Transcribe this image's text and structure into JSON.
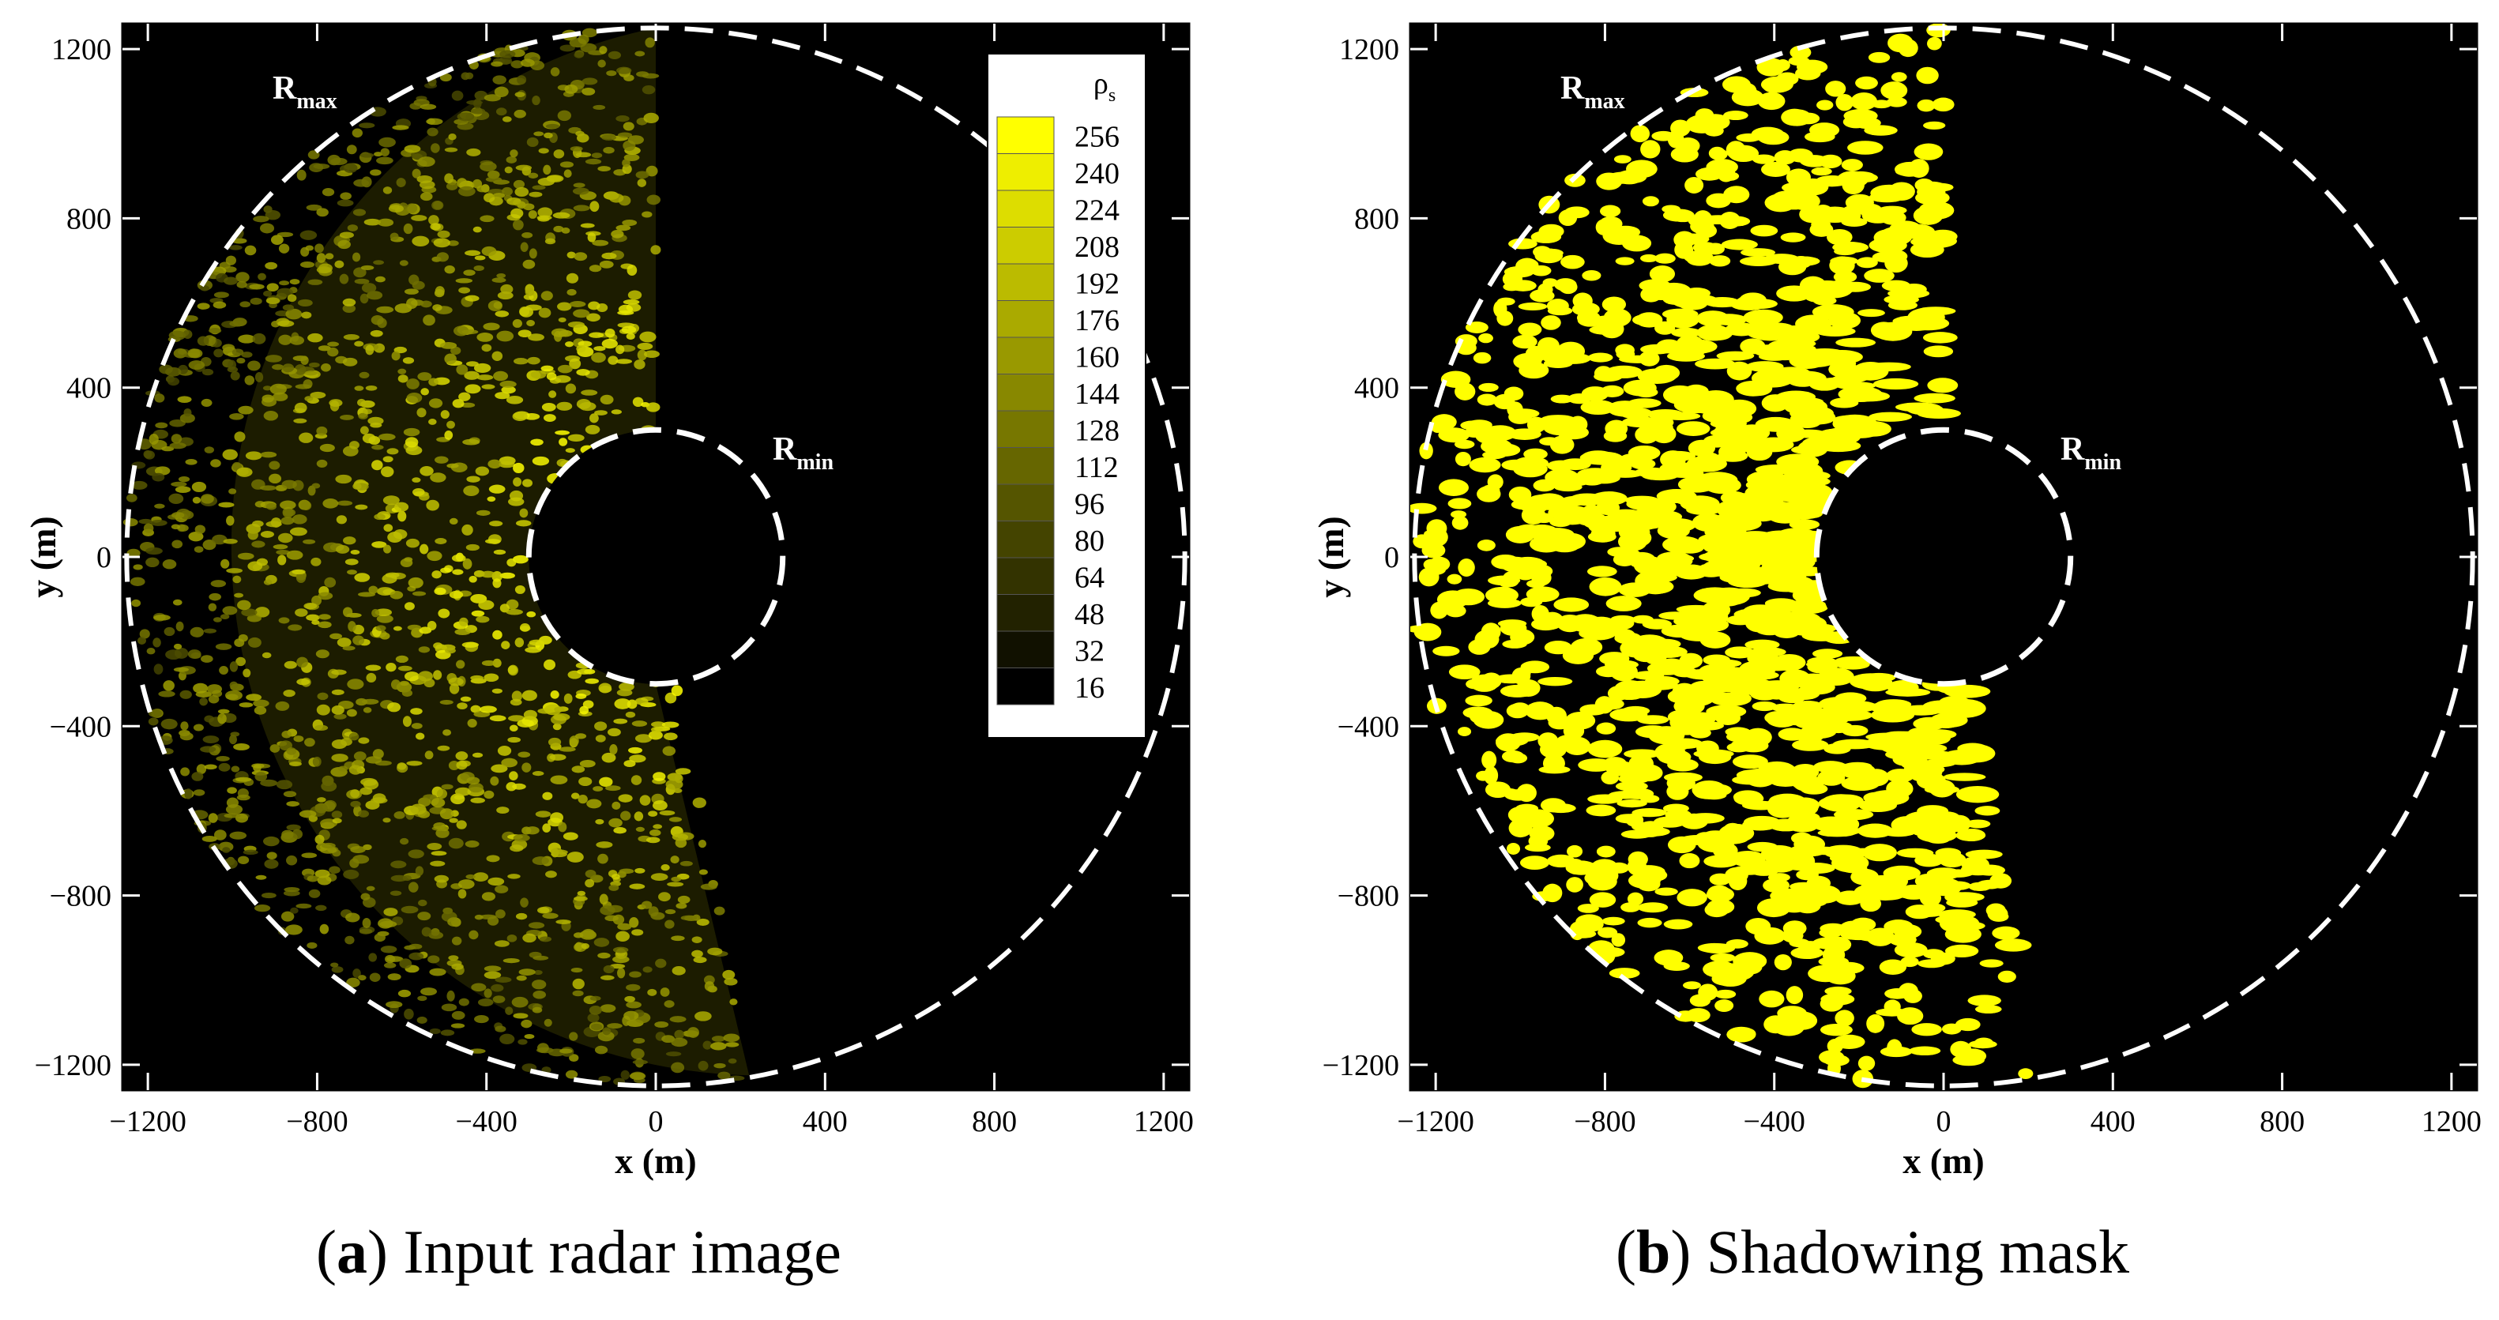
{
  "chart_data": [
    {
      "type": "heatmap",
      "panel_letter": "a",
      "caption": "Input radar image",
      "xlabel": "x (m)",
      "ylabel": "y (m)",
      "xlim": [
        -1260,
        1260
      ],
      "ylim": [
        -1260,
        1260
      ],
      "xticks": [
        "-1200",
        "-800",
        "-400",
        "0",
        "400",
        "800",
        "1200"
      ],
      "yticks": [
        "-1200",
        "-800",
        "-400",
        "0",
        "400",
        "800",
        "1200"
      ],
      "tick_values": [
        -1200,
        -800,
        -400,
        0,
        400,
        800,
        1200
      ],
      "r_max_label": "R",
      "r_max_sub": "max",
      "r_min_label": "R",
      "r_min_sub": "min",
      "r_max": 1250,
      "r_min": 300,
      "colorbar": {
        "title": "ρ",
        "title_sub": "s",
        "levels": [
          "256",
          "240",
          "224",
          "208",
          "192",
          "176",
          "160",
          "144",
          "128",
          "112",
          "96",
          "80",
          "64",
          "48",
          "32",
          "16"
        ],
        "colors": [
          "#ffff00",
          "#eeee00",
          "#dddd00",
          "#cccc00",
          "#bbbb00",
          "#aaaa00",
          "#999900",
          "#888800",
          "#777700",
          "#666600",
          "#555500",
          "#444400",
          "#333300",
          "#222200",
          "#111100",
          "#000000"
        ]
      },
      "legend_placement": "top-right",
      "grid": false,
      "colors": {
        "data": "#ffff00",
        "background": "#000000",
        "circle": "#ffffff"
      }
    },
    {
      "type": "heatmap",
      "panel_letter": "b",
      "caption": "Shadowing mask",
      "xlabel": "x (m)",
      "ylabel": "y (m)",
      "xlim": [
        -1260,
        1260
      ],
      "ylim": [
        -1260,
        1260
      ],
      "xticks": [
        "-1200",
        "-800",
        "-400",
        "0",
        "400",
        "800",
        "1200"
      ],
      "yticks": [
        "-1200",
        "-800",
        "-400",
        "0",
        "400",
        "800",
        "1200"
      ],
      "tick_values": [
        -1200,
        -800,
        -400,
        0,
        400,
        800,
        1200
      ],
      "r_max_label": "R",
      "r_max_sub": "max",
      "r_min_label": "R",
      "r_min_sub": "min",
      "r_max": 1250,
      "r_min": 300,
      "grid": false,
      "colors": {
        "data": "#ffff00",
        "background": "#000000",
        "circle": "#ffffff"
      }
    }
  ]
}
